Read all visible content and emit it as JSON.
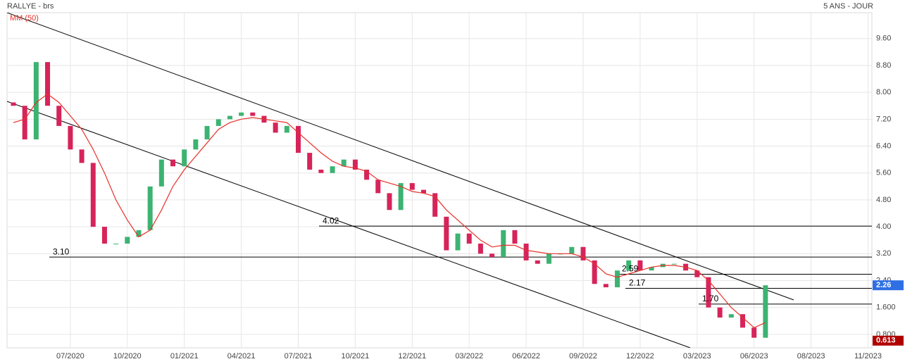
{
  "chart_data": {
    "type": "candlestick",
    "title": "RALLYE - brs",
    "subtitle": "5 ANS - JOUR",
    "categories": [
      null,
      null,
      null,
      null,
      null,
      "07/2020",
      null,
      null,
      null,
      null,
      "10/2020",
      null,
      null,
      null,
      null,
      "01/2021",
      null,
      null,
      null,
      null,
      "04/2021",
      null,
      null,
      null,
      null,
      "07/2021",
      null,
      null,
      null,
      null,
      "10/2021",
      null,
      null,
      null,
      null,
      "12/2021",
      null,
      null,
      null,
      null,
      "03/2022",
      null,
      null,
      null,
      null,
      "06/2022",
      null,
      null,
      null,
      null,
      "09/2022",
      null,
      null,
      null,
      null,
      "12/2022",
      null,
      null,
      null,
      null,
      "03/2023",
      null,
      null,
      null,
      null,
      "06/2023",
      null,
      null,
      null,
      null,
      "08/2023",
      null,
      null,
      null,
      null,
      "11/2023"
    ],
    "series": [
      {
        "up_color": "#3cb371",
        "down_color": "#d6245a",
        "open": [
          7.7,
          7.6,
          6.6,
          8.9,
          7.6,
          7.0,
          6.3,
          5.9,
          4.0,
          3.5,
          3.5,
          3.7,
          3.9,
          5.2,
          6.0,
          5.8,
          6.3,
          6.6,
          7.0,
          7.2,
          7.3,
          7.4,
          7.3,
          7.1,
          6.8,
          7.0,
          6.2,
          5.7,
          5.6,
          5.8,
          6.0,
          5.7,
          5.4,
          5.0,
          4.5,
          5.3,
          5.1,
          5.0,
          4.3,
          3.3,
          3.8,
          3.5,
          3.2,
          3.1,
          3.9,
          3.5,
          3.0,
          2.9,
          3.2,
          3.2,
          3.4,
          3.0,
          2.3,
          2.2,
          2.7,
          3.0,
          2.7,
          2.8,
          2.9,
          2.9,
          2.7,
          2.5,
          1.6,
          1.3,
          1.4,
          1.0,
          0.7,
          null,
          null,
          null,
          null,
          null,
          null,
          null,
          null,
          null
        ],
        "close": [
          7.6,
          6.6,
          8.9,
          7.6,
          7.0,
          6.3,
          5.9,
          4.0,
          3.5,
          3.5,
          3.7,
          3.9,
          5.2,
          6.0,
          5.8,
          6.3,
          6.6,
          7.0,
          7.2,
          7.3,
          7.4,
          7.3,
          7.1,
          6.8,
          7.0,
          6.2,
          5.7,
          5.6,
          5.8,
          6.0,
          5.7,
          5.4,
          5.0,
          4.5,
          5.3,
          5.1,
          5.0,
          4.3,
          3.3,
          3.8,
          3.5,
          3.2,
          3.1,
          3.9,
          3.5,
          3.0,
          2.9,
          3.2,
          3.2,
          3.4,
          3.0,
          2.3,
          2.2,
          2.7,
          3.0,
          2.7,
          2.8,
          2.9,
          2.9,
          2.7,
          2.5,
          1.6,
          1.3,
          1.4,
          1.0,
          0.7,
          2.26,
          null,
          null,
          null,
          null,
          null,
          null,
          null,
          null,
          null
        ]
      },
      {
        "name": "MM (50)",
        "type": "line",
        "color": "#e8302a",
        "values": [
          7.1,
          7.2,
          7.7,
          7.95,
          7.7,
          7.3,
          6.9,
          6.3,
          5.6,
          4.8,
          4.2,
          3.7,
          3.9,
          4.5,
          5.2,
          5.7,
          6.1,
          6.5,
          6.9,
          7.1,
          7.2,
          7.25,
          7.2,
          7.15,
          7.1,
          6.8,
          6.5,
          6.2,
          5.95,
          5.8,
          5.75,
          5.65,
          5.4,
          5.3,
          5.2,
          5.05,
          5.0,
          4.9,
          4.5,
          4.2,
          3.9,
          3.6,
          3.4,
          3.45,
          3.45,
          3.3,
          3.25,
          3.2,
          3.2,
          3.2,
          3.1,
          2.9,
          2.6,
          2.5,
          2.6,
          2.7,
          2.8,
          2.85,
          2.85,
          2.8,
          2.7,
          2.4,
          2.0,
          1.6,
          1.3,
          1.0,
          1.15,
          null,
          null,
          null,
          null,
          null,
          null,
          null,
          null,
          null
        ]
      }
    ],
    "levels": {
      "values": [
        4.02,
        3.1,
        2.59,
        2.17,
        1.7
      ],
      "value_labels": [
        "4.02",
        "3.10",
        "2.59",
        "2.17",
        "1.70"
      ],
      "color": "#000000"
    },
    "price_tags": {
      "values": [
        2.26,
        0.613
      ],
      "colors": [
        "#2f6fe4",
        "#b00000"
      ]
    },
    "ylim": [
      0.4,
      10.37
    ],
    "yticks": [
      {
        "value": 9.6,
        "label": "9.60"
      },
      {
        "value": 8.8,
        "label": "8.80"
      },
      {
        "value": 8,
        "label": "8.00"
      },
      {
        "value": 7.2,
        "label": "7.20"
      },
      {
        "value": 6.4,
        "label": "6.40"
      },
      {
        "value": 5.6,
        "label": "5.60"
      },
      {
        "value": 4.8,
        "label": "4.80"
      },
      {
        "value": 4,
        "label": "4.00"
      },
      {
        "value": 3.2,
        "label": "3.20"
      },
      {
        "value": 2.4,
        "label": "2.40"
      },
      {
        "value": 1.6,
        "label": "1.600"
      },
      {
        "value": 0.8,
        "label": "0.800"
      }
    ],
    "grid": true
  }
}
